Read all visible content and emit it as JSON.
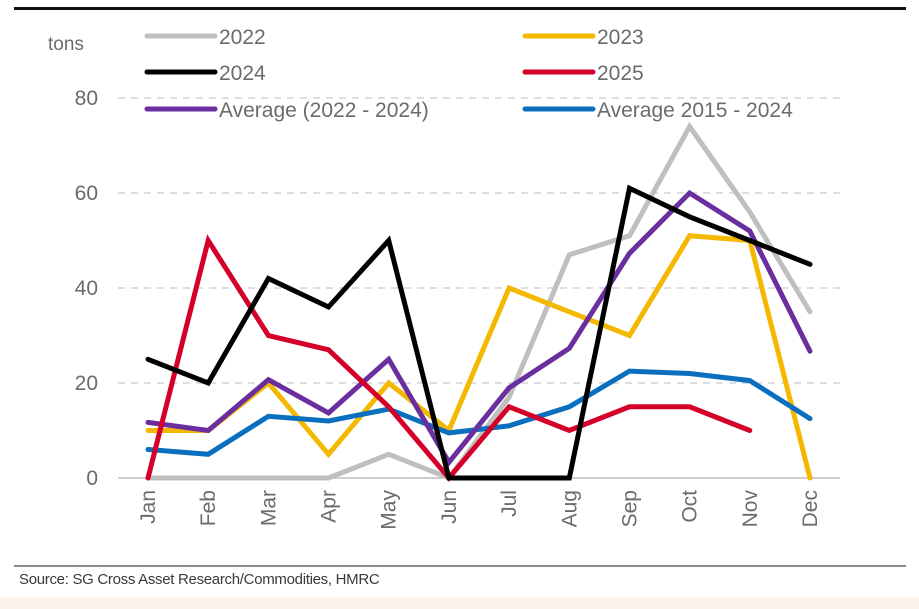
{
  "chart_data": {
    "type": "line",
    "title": "",
    "ylabel": "tons",
    "xlabel": "",
    "ylim": [
      0,
      80
    ],
    "yticks": [
      0,
      20,
      40,
      60,
      80
    ],
    "ytick_labels": [
      "0",
      "20",
      "40",
      "60",
      "80"
    ],
    "grid": "horizontal dashed",
    "legend_position": "top",
    "categories": [
      "Jan",
      "Feb",
      "Mar",
      "Apr",
      "May",
      "Jun",
      "Jul",
      "Aug",
      "Sep",
      "Oct",
      "Nov",
      "Dec"
    ],
    "series": [
      {
        "name": "2022",
        "color": "#bfbfbf",
        "values": [
          0,
          0,
          0,
          0,
          5,
          0,
          17,
          47,
          51,
          74,
          56,
          35
        ]
      },
      {
        "name": "2023",
        "color": "#f5b800",
        "values": [
          10,
          10,
          20,
          5,
          20,
          10,
          40,
          35,
          30,
          51,
          50,
          0
        ]
      },
      {
        "name": "2024",
        "color": "#000000",
        "values": [
          25,
          20,
          42,
          36,
          50,
          0,
          0,
          0,
          61,
          55,
          50,
          45
        ]
      },
      {
        "name": "2025",
        "color": "#d4002a",
        "values": [
          0,
          50,
          30,
          27,
          15,
          0,
          15,
          10,
          15,
          15,
          10,
          null
        ]
      },
      {
        "name": "Average (2022 - 2024)",
        "color": "#6a2e9e",
        "values": [
          11.7,
          10,
          20.7,
          13.7,
          25,
          3.3,
          19,
          27.3,
          47.3,
          60,
          52,
          26.7
        ]
      },
      {
        "name": "Average 2015 - 2024",
        "color": "#0a6fbf",
        "values": [
          6,
          5,
          13,
          12,
          14.5,
          9.5,
          11,
          15,
          22.5,
          22,
          20.5,
          12.5
        ]
      }
    ]
  },
  "source": "Source: SG Cross Asset Research/Commodities, HMRC"
}
